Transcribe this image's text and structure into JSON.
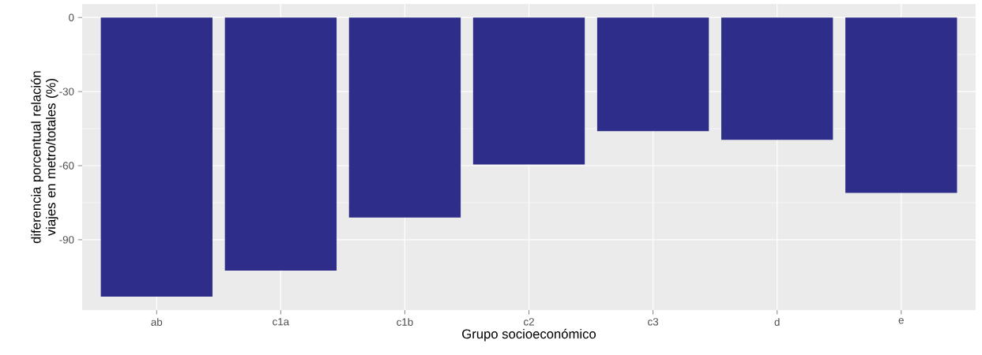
{
  "chart_data": {
    "type": "bar",
    "xlabel": "Grupo socioeconómico",
    "ylabel": "diferencia porcentual relación viajes en metro/totales (%)",
    "categories": [
      "ab",
      "c1a",
      "c1b",
      "c2",
      "c3",
      "d",
      "e"
    ],
    "values": [
      -113,
      -102.5,
      -81,
      -59.5,
      -46,
      -49.5,
      -71
    ],
    "color": "#2e2e8a",
    "ylim": [
      -118.5,
      5.5
    ],
    "yticks": [
      0,
      -30,
      -60,
      -90
    ],
    "grid": true
  }
}
